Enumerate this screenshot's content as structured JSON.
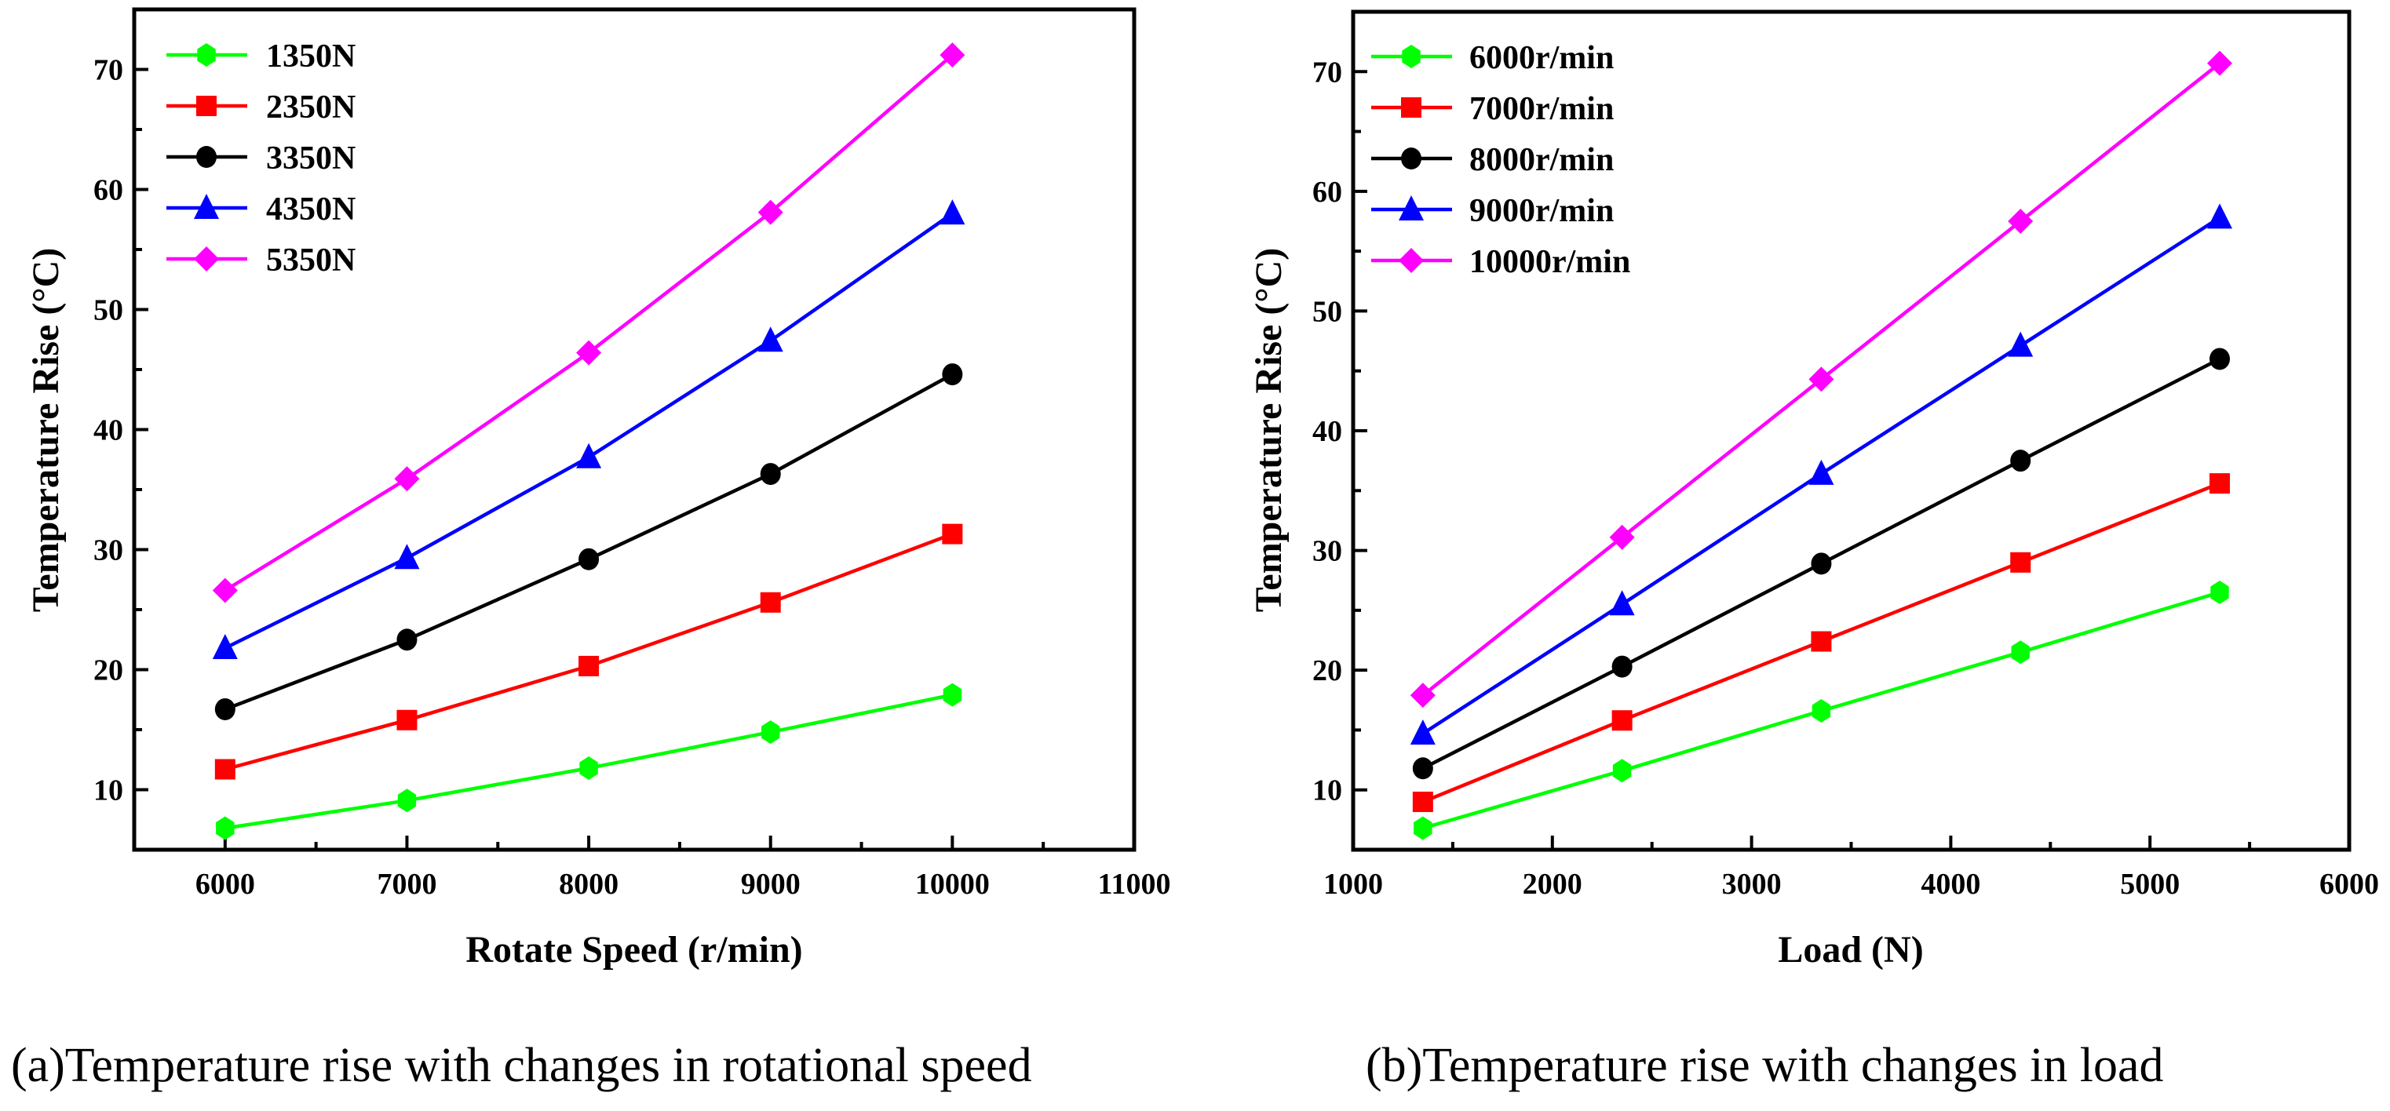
{
  "figure": {
    "caption_a": "(a)Temperature rise with changes in rotational speed",
    "caption_b": "(b)Temperature rise with changes in load"
  },
  "chart_data": [
    {
      "id": "a",
      "type": "line",
      "title": "",
      "xlabel": "Rotate Speed (r/min)",
      "ylabel": "Temperature Rise (°C)",
      "xlim": [
        5500,
        11000
      ],
      "ylim": [
        5,
        75
      ],
      "xticks": [
        6000,
        7000,
        8000,
        9000,
        10000,
        11000
      ],
      "xticks_minor": [
        6500,
        7500,
        8500,
        9500,
        10500
      ],
      "yticks": [
        10,
        20,
        30,
        40,
        50,
        60,
        70
      ],
      "yticks_minor": [
        15,
        25,
        35,
        45,
        55,
        65
      ],
      "grid": false,
      "legend_position": "top-left",
      "x": [
        6000,
        7000,
        8000,
        9000,
        10000
      ],
      "series": [
        {
          "name": "1350N",
          "color": "#00ff00",
          "marker": "hexagon",
          "values": [
            6.8,
            9.1,
            11.8,
            14.8,
            17.9
          ]
        },
        {
          "name": "2350N",
          "color": "#ff0000",
          "marker": "square",
          "values": [
            11.7,
            15.8,
            20.3,
            25.6,
            31.3
          ]
        },
        {
          "name": "3350N",
          "color": "#000000",
          "marker": "circle",
          "values": [
            16.7,
            22.5,
            29.2,
            36.3,
            44.6
          ]
        },
        {
          "name": "4350N",
          "color": "#0000ff",
          "marker": "triangle",
          "values": [
            21.8,
            29.3,
            37.7,
            47.4,
            58.0
          ]
        },
        {
          "name": "5350N",
          "color": "#ff00ff",
          "marker": "diamond",
          "values": [
            26.6,
            35.9,
            46.4,
            58.1,
            71.2
          ]
        }
      ]
    },
    {
      "id": "b",
      "type": "line",
      "title": "",
      "xlabel": "Load (N)",
      "ylabel": "Temperature Rise (°C)",
      "xlim": [
        1000,
        6000
      ],
      "ylim": [
        5,
        75
      ],
      "xticks": [
        1000,
        2000,
        3000,
        4000,
        5000,
        6000
      ],
      "xticks_minor": [
        1500,
        2500,
        3500,
        4500,
        5500
      ],
      "yticks": [
        10,
        20,
        30,
        40,
        50,
        60,
        70
      ],
      "yticks_minor": [
        15,
        25,
        35,
        45,
        55,
        65
      ],
      "grid": false,
      "legend_position": "top-left",
      "x": [
        1350,
        2350,
        3350,
        4350,
        5350
      ],
      "series": [
        {
          "name": "6000r/min",
          "color": "#00ff00",
          "marker": "hexagon",
          "values": [
            6.8,
            11.6,
            16.6,
            21.5,
            26.5
          ]
        },
        {
          "name": "7000r/min",
          "color": "#ff0000",
          "marker": "square",
          "values": [
            9.0,
            15.8,
            22.4,
            29.0,
            35.6
          ]
        },
        {
          "name": "8000r/min",
          "color": "#000000",
          "marker": "circle",
          "values": [
            11.8,
            20.3,
            28.9,
            37.5,
            46.0
          ]
        },
        {
          "name": "9000r/min",
          "color": "#0000ff",
          "marker": "triangle",
          "values": [
            14.7,
            25.5,
            36.4,
            47.1,
            57.8
          ]
        },
        {
          "name": "10000r/min",
          "color": "#ff00ff",
          "marker": "diamond",
          "values": [
            17.9,
            31.1,
            44.3,
            57.5,
            70.7
          ]
        }
      ]
    }
  ]
}
